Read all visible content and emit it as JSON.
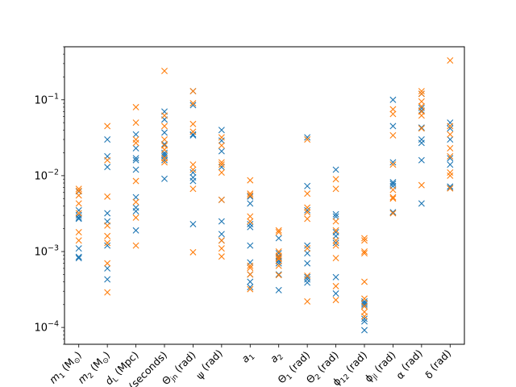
{
  "chart_data": {
    "type": "scatter",
    "title": "",
    "xlabel": "",
    "ylabel": "",
    "yscale": "log",
    "ylim": [
      6e-05,
      0.5
    ],
    "grid": false,
    "marker": "x",
    "categories": [
      "m_1 (M_⊙)",
      "m_2 (M_⊙)",
      "d_L (Mpc)",
      "t_c (seconds)",
      "Θ_jn (rad)",
      "ψ (rad)",
      "a_1",
      "a_2",
      "Θ_1 (rad)",
      "Θ_2 (rad)",
      "ϕ_12 (rad)",
      "ϕ_jl (rad)",
      "α (rad)",
      "δ (rad)"
    ],
    "tick_labels": [
      {
        "base": "m",
        "sub": "1",
        "rest": " (M",
        "sub2": "⊙",
        "end": ")"
      },
      {
        "base": "m",
        "sub": "2",
        "rest": " (M",
        "sub2": "⊙",
        "end": ")"
      },
      {
        "base": "d",
        "sub": "L",
        "rest": " (Mpc)",
        "sub2": "",
        "end": ""
      },
      {
        "base": "t",
        "sub": "c",
        "rest": " (seconds)",
        "sub2": "",
        "end": ""
      },
      {
        "base": "Θ",
        "sub": "jn",
        "rest": " (rad)",
        "sub2": "",
        "end": ""
      },
      {
        "base": "ψ",
        "sub": "",
        "rest": " (rad)",
        "sub2": "",
        "end": ""
      },
      {
        "base": "a",
        "sub": "1",
        "rest": "",
        "sub2": "",
        "end": ""
      },
      {
        "base": "a",
        "sub": "2",
        "rest": "",
        "sub2": "",
        "end": ""
      },
      {
        "base": "Θ",
        "sub": "1",
        "rest": " (rad)",
        "sub2": "",
        "end": ""
      },
      {
        "base": "Θ",
        "sub": "2",
        "rest": " (rad)",
        "sub2": "",
        "end": ""
      },
      {
        "base": "ϕ",
        "sub": "12",
        "rest": " (rad)",
        "sub2": "",
        "end": ""
      },
      {
        "base": "ϕ",
        "sub": "jl",
        "rest": " (rad)",
        "sub2": "",
        "end": ""
      },
      {
        "base": "α",
        "sub": "",
        "rest": " (rad)",
        "sub2": "",
        "end": ""
      },
      {
        "base": "δ",
        "sub": "",
        "rest": " (rad)",
        "sub2": "",
        "end": ""
      }
    ],
    "y_ticks": [
      {
        "value": 0.0001,
        "mantissa": "10",
        "exp": "−4"
      },
      {
        "value": 0.001,
        "mantissa": "10",
        "exp": "−3"
      },
      {
        "value": 0.01,
        "mantissa": "10",
        "exp": "−2"
      },
      {
        "value": 0.1,
        "mantissa": "10",
        "exp": "−1"
      }
    ],
    "series": [
      {
        "color": "#1f77b4",
        "values": [
          [
            0.0062,
            0.0035,
            0.003,
            0.0028,
            0.0027,
            0.0011,
            0.00085,
            0.00082
          ],
          [
            0.03,
            0.018,
            0.013,
            0.0032,
            0.0025,
            0.0012,
            0.0006,
            0.00043
          ],
          [
            0.035,
            0.023,
            0.017,
            0.016,
            0.012,
            0.0052,
            0.0038,
            0.0034,
            0.0019
          ],
          [
            0.07,
            0.055,
            0.037,
            0.026,
            0.02,
            0.019,
            0.018,
            0.016,
            0.0091
          ],
          [
            0.13,
            0.085,
            0.035,
            0.034,
            0.011,
            0.0095,
            0.0085,
            0.0023
          ],
          [
            0.04,
            0.029,
            0.021,
            0.013,
            0.0048,
            0.0025,
            0.0017,
            0.0014
          ],
          [
            0.0053,
            0.0043,
            0.0023,
            0.0021,
            0.0012,
            0.00072,
            0.0005,
            0.0004,
            0.00034
          ],
          [
            0.0015,
            0.00095,
            0.00085,
            0.00076,
            0.00075,
            0.0007,
            0.0005,
            0.00031
          ],
          [
            0.032,
            0.0073,
            0.0035,
            0.0012,
            0.00095,
            0.0007,
            0.00046,
            0.00043,
            0.00039
          ],
          [
            0.012,
            0.0031,
            0.0029,
            0.0018,
            0.0016,
            0.0013,
            0.00046,
            0.00028
          ],
          [
            0.00022,
            0.00021,
            0.0002,
            0.00019,
            0.00013,
            0.00012,
            9.2e-05
          ],
          [
            0.1,
            0.045,
            0.015,
            0.0082,
            0.0078,
            0.0073,
            0.0033
          ],
          [
            0.12,
            0.078,
            0.072,
            0.043,
            0.03,
            0.027,
            0.016,
            0.0043
          ],
          [
            0.05,
            0.042,
            0.03,
            0.017,
            0.014,
            0.0072,
            0.0069
          ]
        ]
      },
      {
        "color": "#ff7f0e",
        "values": [
          [
            0.0067,
            0.0063,
            0.0055,
            0.0043,
            0.0032,
            0.0018,
            0.0014
          ],
          [
            0.045,
            0.016,
            0.0053,
            0.0022,
            0.0016,
            0.0013,
            0.0007,
            0.00029
          ],
          [
            0.08,
            0.05,
            0.03,
            0.027,
            0.0085,
            0.0045,
            0.0028,
            0.0012
          ],
          [
            0.24,
            0.062,
            0.045,
            0.03,
            0.025,
            0.022,
            0.017,
            0.015
          ],
          [
            0.13,
            0.09,
            0.048,
            0.038,
            0.014,
            0.012,
            0.0067,
            0.00098
          ],
          [
            0.032,
            0.025,
            0.015,
            0.014,
            0.011,
            0.0048,
            0.0014,
            0.0011,
            0.00086
          ],
          [
            0.0087,
            0.0058,
            0.0055,
            0.0029,
            0.0025,
            0.00065,
            0.00061,
            0.0005,
            0.00032
          ],
          [
            0.0019,
            0.0018,
            0.001,
            0.00088,
            0.00082,
            0.0008,
            0.00065,
            0.00049
          ],
          [
            0.03,
            0.0058,
            0.0038,
            0.0033,
            0.0027,
            0.0011,
            0.00048,
            0.00022
          ],
          [
            0.009,
            0.0067,
            0.0025,
            0.0019,
            0.0014,
            0.0012,
            0.00082,
            0.00035,
            0.00023
          ],
          [
            0.0015,
            0.0014,
            0.001,
            0.00095,
            0.0004,
            0.00024,
            0.00019,
            0.00016,
            0.00014
          ],
          [
            0.075,
            0.065,
            0.034,
            0.014,
            0.0065,
            0.0052,
            0.005,
            0.0032
          ],
          [
            0.13,
            0.12,
            0.095,
            0.082,
            0.07,
            0.062,
            0.042,
            0.0075
          ],
          [
            0.33,
            0.045,
            0.035,
            0.023,
            0.018,
            0.011,
            0.01,
            0.0068
          ]
        ]
      }
    ]
  }
}
